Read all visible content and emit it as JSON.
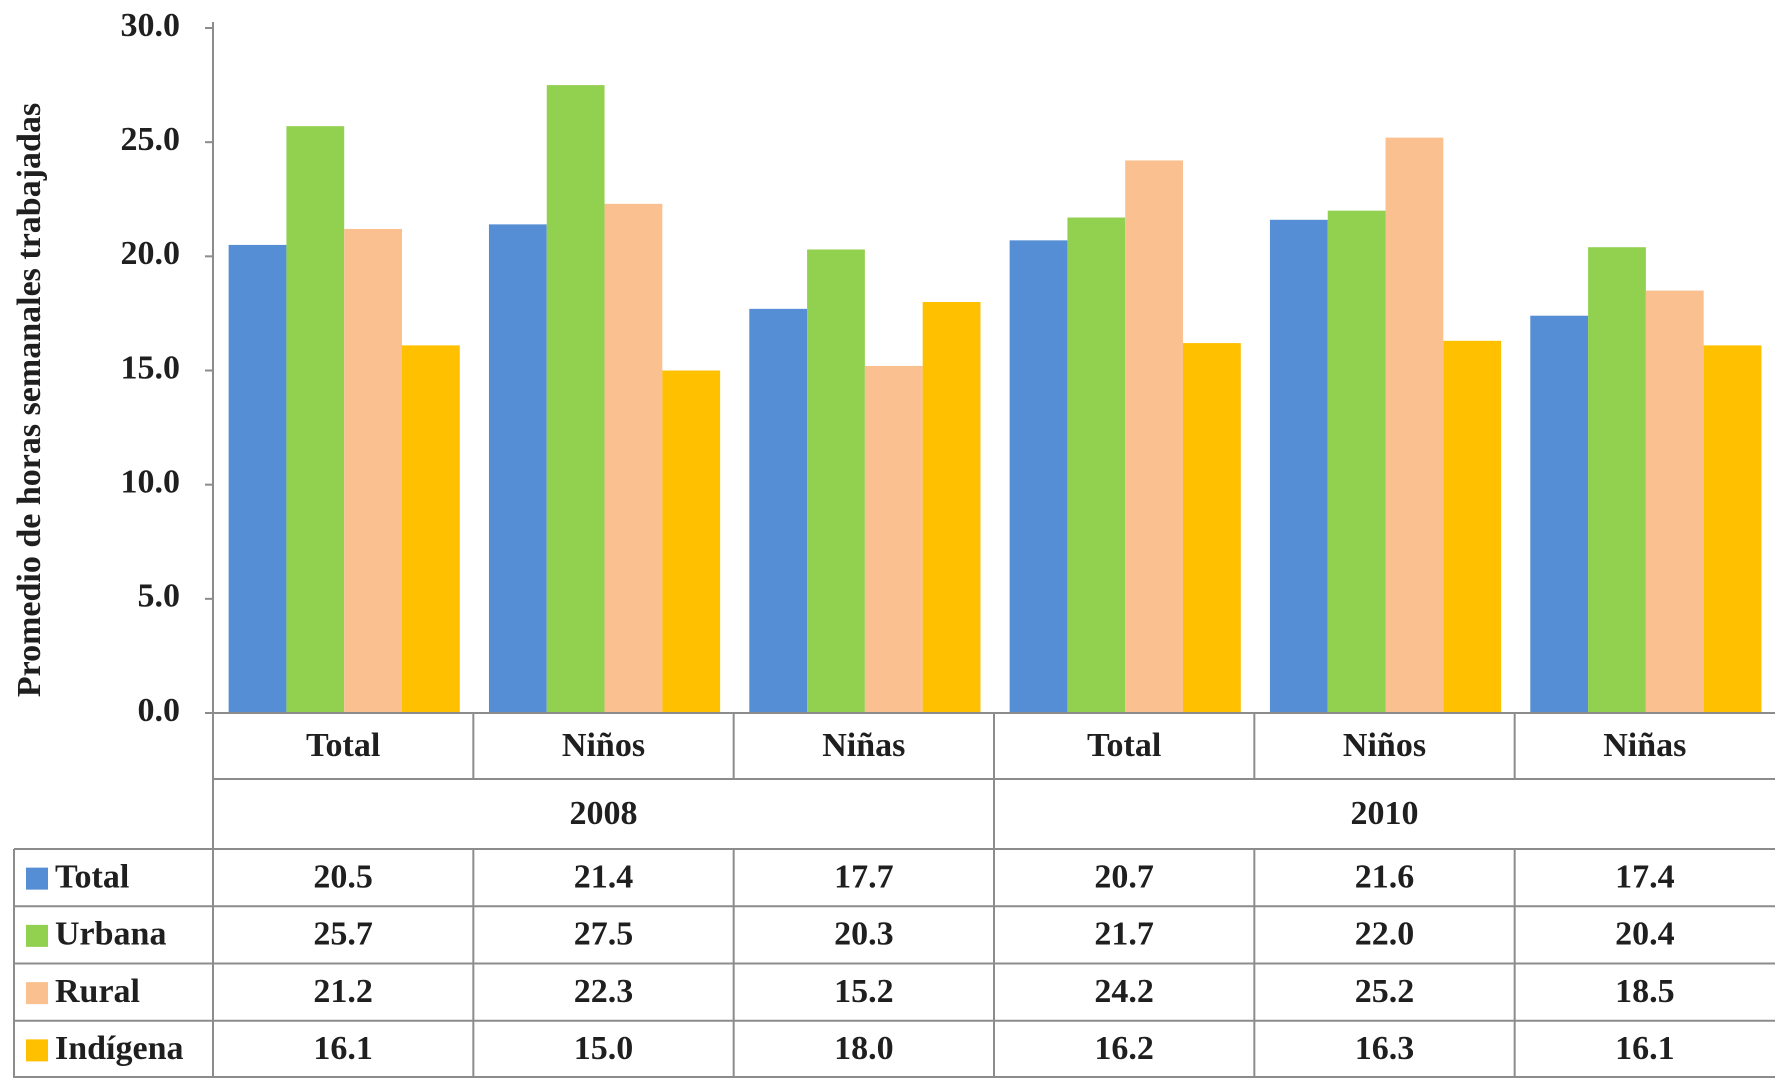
{
  "chart_data": {
    "type": "bar",
    "y_label": "Promedio de horas semanales trabajadas",
    "categories": [
      "Total",
      "Niños",
      "Niñas",
      "Total",
      "Niños",
      "Niñas"
    ],
    "groups": [
      "2008",
      "2010"
    ],
    "ylim": [
      0,
      30
    ],
    "yticks": [
      {
        "value": 0,
        "label": "0.0"
      },
      {
        "value": 5,
        "label": "5.0"
      },
      {
        "value": 10,
        "label": "10.0"
      },
      {
        "value": 15,
        "label": "15.0"
      },
      {
        "value": 20,
        "label": "20.0"
      },
      {
        "value": 25,
        "label": "25.0"
      },
      {
        "value": 30,
        "label": "30.0"
      }
    ],
    "grid": false,
    "series": [
      {
        "name": "Total",
        "color": "#558ed5",
        "values": [
          20.5,
          21.4,
          17.7,
          20.7,
          21.6,
          17.4
        ],
        "value_labels": [
          "20.5",
          "21.4",
          "17.7",
          "20.7",
          "21.6",
          "17.4"
        ]
      },
      {
        "name": "Urbana",
        "color": "#92d050",
        "values": [
          25.7,
          27.5,
          20.3,
          21.7,
          22.0,
          20.4
        ],
        "value_labels": [
          "25.7",
          "27.5",
          "20.3",
          "21.7",
          "22.0",
          "20.4"
        ]
      },
      {
        "name": "Rural",
        "color": "#fac090",
        "values": [
          21.2,
          22.3,
          15.2,
          24.2,
          25.2,
          18.5
        ],
        "value_labels": [
          "21.2",
          "22.3",
          "15.2",
          "24.2",
          "25.2",
          "18.5"
        ]
      },
      {
        "name": "Indígena",
        "color": "#ffc000",
        "values": [
          16.1,
          15.0,
          18.0,
          16.2,
          16.3,
          16.1
        ],
        "value_labels": [
          "16.1",
          "15.0",
          "18.0",
          "16.2",
          "16.3",
          "16.1"
        ]
      }
    ]
  }
}
